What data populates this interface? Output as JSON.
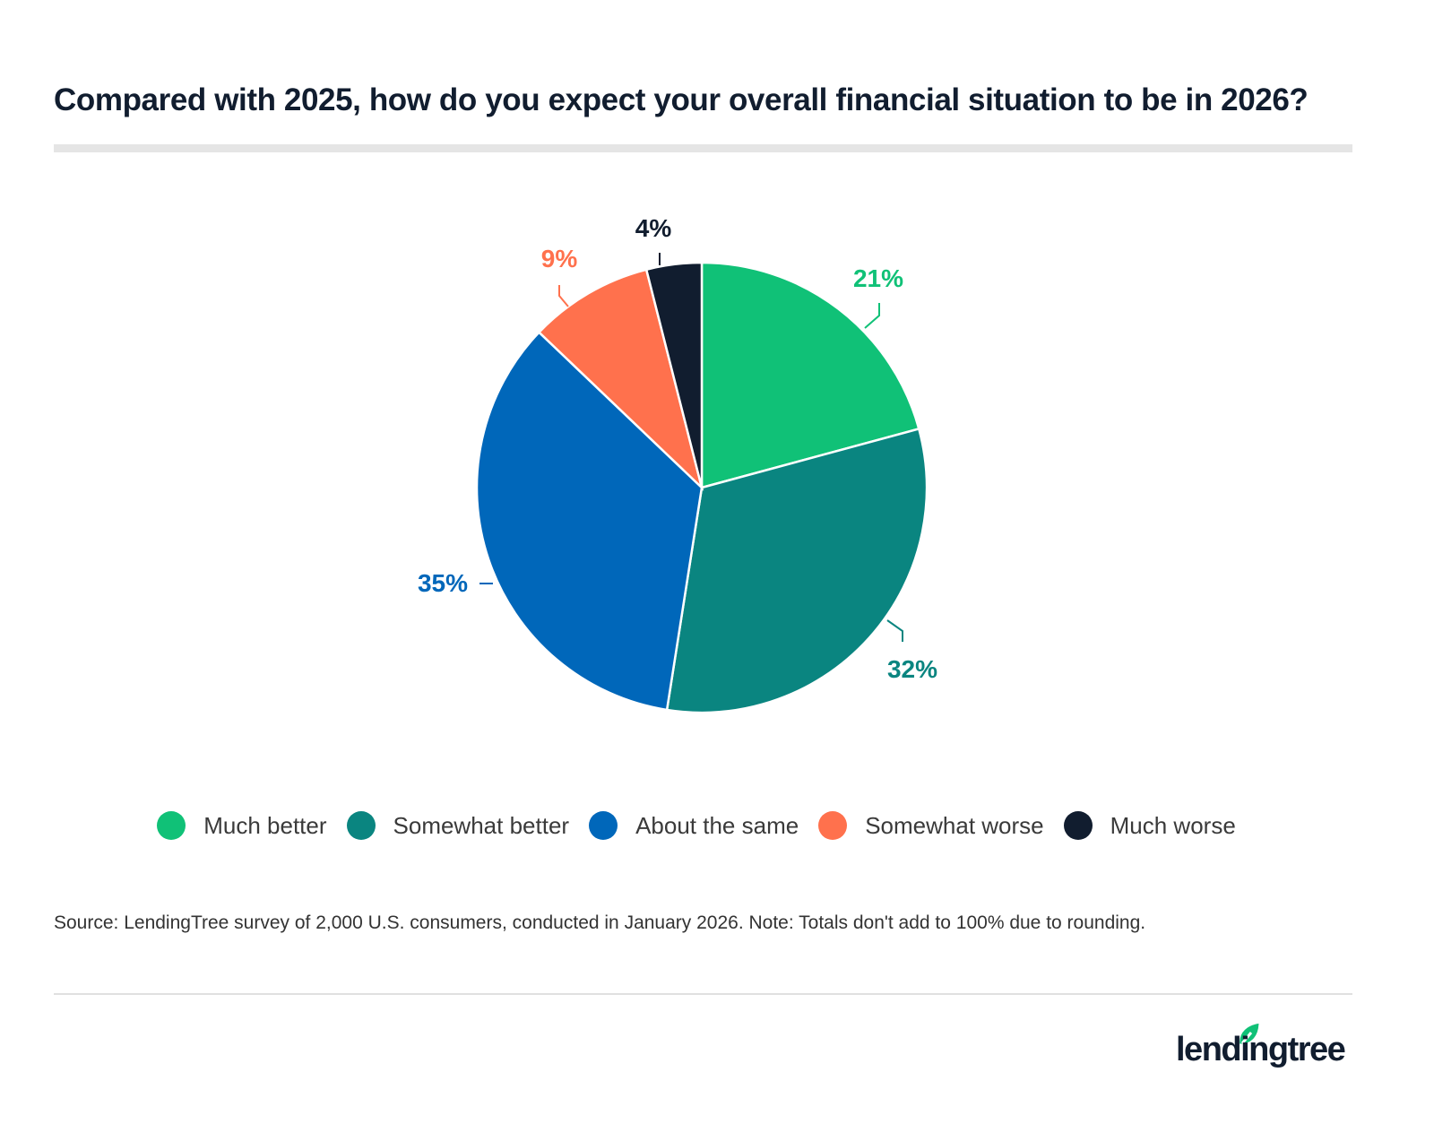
{
  "title": "Compared with 2025, how do you expect your overall financial situation to be in 2026?",
  "chart_data": {
    "type": "pie",
    "categories": [
      "Much better",
      "Somewhat better",
      "About the same",
      "Somewhat worse",
      "Much worse"
    ],
    "values": [
      21,
      32,
      35,
      9,
      4
    ],
    "labels": [
      "21%",
      "32%",
      "35%",
      "9%",
      "4%"
    ],
    "colors": [
      "#10c177",
      "#0a8580",
      "#0067ba",
      "#ff714d",
      "#111d2f"
    ],
    "start": "12 o'clock, clockwise",
    "legend_position": "bottom"
  },
  "source": "Source: LendingTree survey of 2,000 U.S. consumers, conducted in January 2026. Note: Totals don't add to 100% due to rounding.",
  "logo": {
    "text": "lendingtree",
    "leaf_color": "#10c177"
  }
}
